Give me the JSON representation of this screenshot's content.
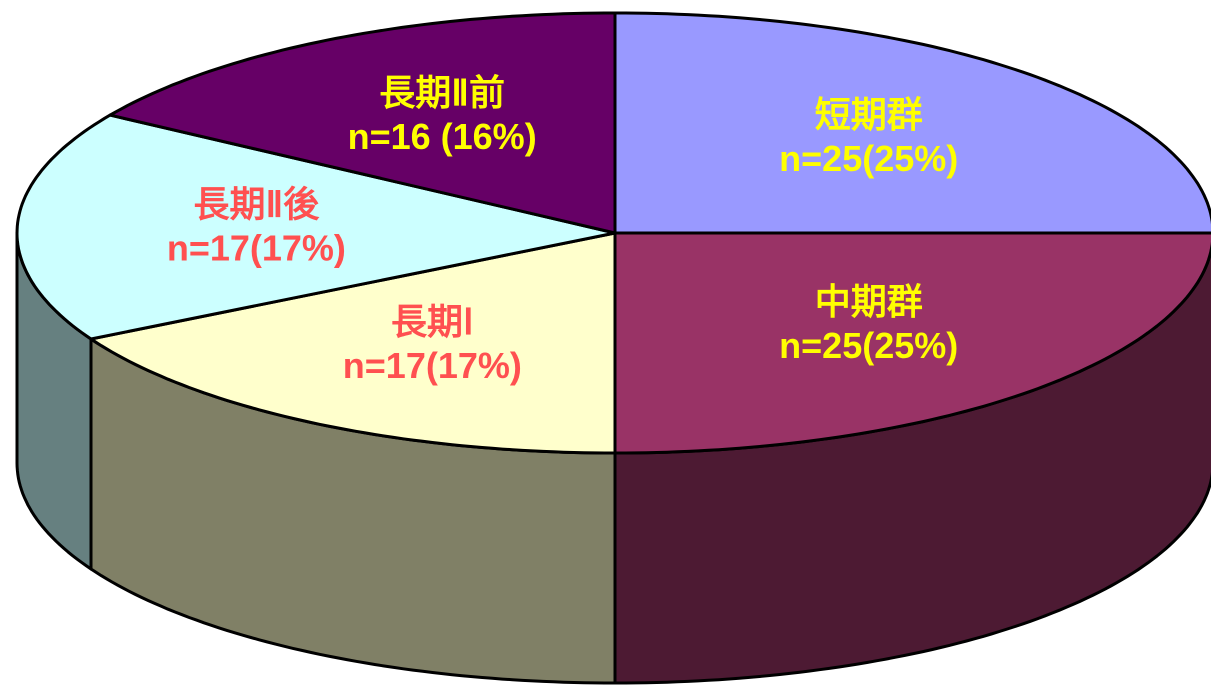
{
  "chart_data": {
    "type": "pie",
    "categories": [
      "短期群",
      "中期群",
      "長期Ⅰ",
      "長期Ⅱ後",
      "長期Ⅱ前"
    ],
    "values": [
      25,
      25,
      17,
      17,
      16
    ],
    "value_labels": [
      "n=25(25%)",
      "n=25(25%)",
      "n=17(17%)",
      "n=17(17%)",
      "n=16 (16%)"
    ],
    "colors": [
      "#9999ff",
      "#993366",
      "#ffffcc",
      "#ccffff",
      "#660066"
    ],
    "label_colors": [
      "#ffff00",
      "#ffff00",
      "#ff5050",
      "#ff5050",
      "#ffff00"
    ]
  }
}
